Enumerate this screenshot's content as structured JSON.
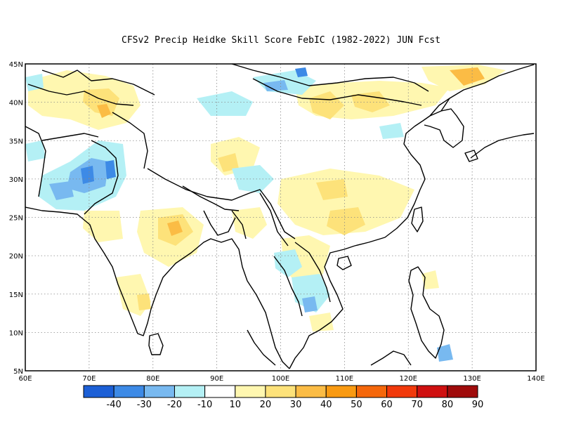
{
  "title": "CFSv2 Precip Heidke Skill Score FebIC (1982-2022) JUN Fcst",
  "map": {
    "lon_range": [
      60,
      140
    ],
    "lat_range": [
      5,
      45
    ],
    "lon_ticks": [
      "60E",
      "70E",
      "80E",
      "90E",
      "100E",
      "110E",
      "120E",
      "130E",
      "140E"
    ],
    "lat_ticks": [
      "5N",
      "10N",
      "15N",
      "20N",
      "25N",
      "30N",
      "35N",
      "40N",
      "45N"
    ],
    "grid": "dotted"
  },
  "colorbar": {
    "labels": [
      "-40",
      "-30",
      "-20",
      "-10",
      "10",
      "20",
      "30",
      "40",
      "50",
      "60",
      "70",
      "80",
      "90"
    ],
    "colors": [
      "#1c5fd6",
      "#3d8ae6",
      "#78b9f0",
      "#b4f0f5",
      "#ffffff",
      "#fff7b0",
      "#fde27a",
      "#fbbc45",
      "#f99a12",
      "#f5670b",
      "#f1390b",
      "#cf1010",
      "#9f0b0b"
    ]
  }
}
